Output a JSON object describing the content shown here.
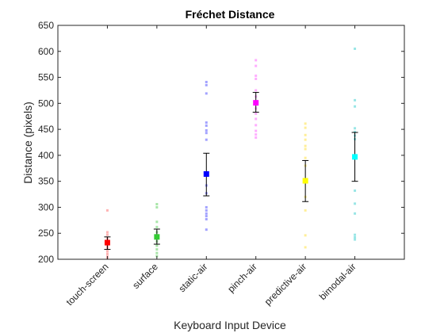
{
  "chart_data": {
    "type": "scatter",
    "title": "Fréchet Distance",
    "xlabel": "Keyboard Input Device",
    "ylabel": "Distance (pixels)",
    "ylim": [
      200,
      650
    ],
    "yticks": [
      200,
      250,
      300,
      350,
      400,
      450,
      500,
      550,
      600,
      650
    ],
    "grid": false,
    "legend": "none",
    "categories": [
      "touch-screen",
      "surface",
      "static-air",
      "pinch-air",
      "predictive-air",
      "bimodal-air"
    ],
    "series": [
      {
        "category": "touch-screen",
        "color": "#ff0000",
        "point_color": "#ffb3b3",
        "mean": 232,
        "error_low": 219,
        "error_high": 243,
        "points": [
          294,
          252,
          247,
          240,
          236,
          232,
          228,
          224,
          220,
          215,
          210,
          205,
          202
        ]
      },
      {
        "category": "surface",
        "color": "#33cc33",
        "point_color": "#a8e6a8",
        "mean": 243,
        "error_low": 229,
        "error_high": 258,
        "points": [
          306,
          300,
          272,
          262,
          252,
          246,
          240,
          234,
          226,
          219,
          212,
          206
        ]
      },
      {
        "category": "static-air",
        "color": "#0000ff",
        "point_color": "#a3a3ff",
        "mean": 364,
        "error_low": 322,
        "error_high": 404,
        "points": [
          541,
          535,
          519,
          463,
          457,
          448,
          443,
          430,
          342,
          327,
          300,
          294,
          288,
          283,
          277,
          257
        ]
      },
      {
        "category": "pinch-air",
        "color": "#ff00ff",
        "point_color": "#ffadff",
        "mean": 501,
        "error_low": 483,
        "error_high": 521,
        "points": [
          583,
          572,
          553,
          547,
          525,
          513,
          500,
          490,
          480,
          470,
          458,
          447,
          440,
          434
        ]
      },
      {
        "category": "predictive-air",
        "color": "#ffff00",
        "point_color": "#ffef99",
        "mean": 351,
        "error_low": 311,
        "error_high": 390,
        "points": [
          461,
          453,
          439,
          430,
          418,
          412,
          395,
          380,
          320,
          294,
          246,
          223
        ]
      },
      {
        "category": "bimodal-air",
        "color": "#00ffff",
        "point_color": "#99e6e6",
        "mean": 397,
        "error_low": 350,
        "error_high": 444,
        "points": [
          605,
          506,
          494,
          452,
          445,
          438,
          431,
          395,
          332,
          307,
          288,
          247,
          242,
          238
        ]
      }
    ]
  }
}
